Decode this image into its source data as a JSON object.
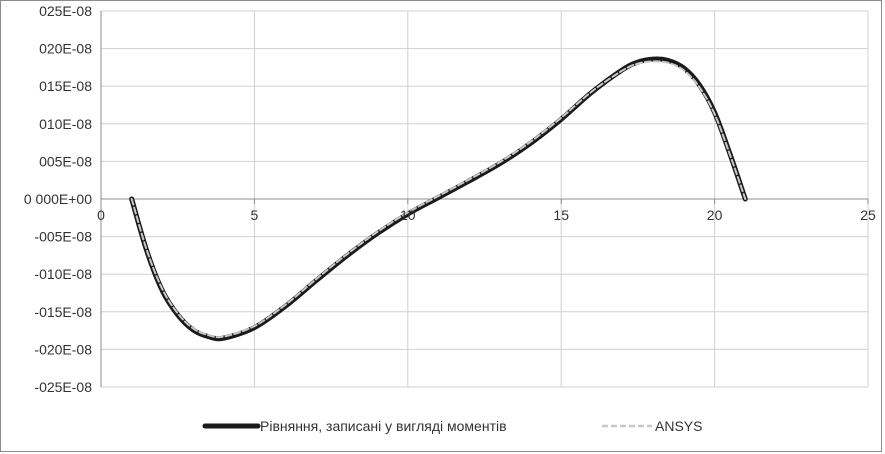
{
  "chart_data": {
    "type": "line",
    "title": "",
    "xlabel": "",
    "ylabel": "",
    "xlim": [
      0,
      25
    ],
    "ylim": [
      -2.5e-07,
      2.5e-07
    ],
    "x_ticks": [
      0,
      5,
      10,
      15,
      20,
      25
    ],
    "x_tick_labels": [
      "0",
      "5",
      "10",
      "15",
      "20",
      "25"
    ],
    "y_ticks": [
      2.5e-07,
      2e-07,
      1.5e-07,
      1e-07,
      5e-08,
      0,
      -5e-08,
      -1e-07,
      -1.5e-07,
      -2e-07,
      -2.5e-07
    ],
    "y_tick_labels": [
      "025E-08",
      "020E-08",
      "015E-08",
      "010E-08",
      "005E-08",
      "0 000E+00",
      "-005E-08",
      "-010E-08",
      "-015E-08",
      "-020E-08",
      "-025E-08"
    ],
    "grid": true,
    "legend_position": "bottom",
    "series": [
      {
        "name": "Рівняння, записані у вигляді моментів",
        "color": "#1a1a1a",
        "style": "solid-thick",
        "x": [
          1,
          1.5,
          2,
          2.5,
          3,
          3.5,
          4,
          5,
          6,
          7,
          8,
          9,
          10,
          11,
          12,
          13,
          14,
          15,
          16,
          17,
          17.5,
          18,
          18.5,
          19,
          19.5,
          20,
          20.5,
          21
        ],
        "y": [
          0,
          -7e-08,
          -1.22e-07,
          -1.54e-07,
          -1.74e-07,
          -1.83e-07,
          -1.85e-07,
          -1.71e-07,
          -1.43e-07,
          -1.09e-07,
          -7.6e-08,
          -4.6e-08,
          -2e-08,
          2e-09,
          2.4e-08,
          4.7e-08,
          7.4e-08,
          1.06e-07,
          1.42e-07,
          1.72e-07,
          1.82e-07,
          1.86e-07,
          1.84e-07,
          1.74e-07,
          1.52e-07,
          1.15e-07,
          6e-08,
          0
        ]
      },
      {
        "name": "ANSYS",
        "color": "#c8c8c8",
        "style": "dashed",
        "x": [
          1,
          1.5,
          2,
          2.5,
          3,
          3.5,
          4,
          5,
          6,
          7,
          8,
          9,
          10,
          11,
          12,
          13,
          14,
          15,
          16,
          17,
          17.5,
          18,
          18.5,
          19,
          19.5,
          20,
          20.5,
          21
        ],
        "y": [
          0,
          -6.9e-08,
          -1.2e-07,
          -1.52e-07,
          -1.72e-07,
          -1.81e-07,
          -1.83e-07,
          -1.69e-07,
          -1.41e-07,
          -1.07e-07,
          -7.4e-08,
          -4.4e-08,
          -1.8e-08,
          4e-09,
          2.6e-08,
          4.9e-08,
          7.6e-08,
          1.08e-07,
          1.43e-07,
          1.71e-07,
          1.8e-07,
          1.83e-07,
          1.81e-07,
          1.71e-07,
          1.49e-07,
          1.13e-07,
          5.9e-08,
          0
        ]
      }
    ]
  }
}
